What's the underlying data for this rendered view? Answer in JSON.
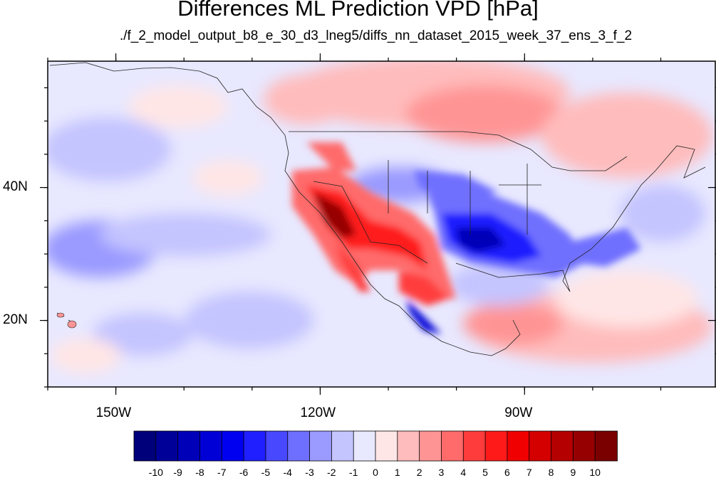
{
  "title": "Differences ML Prediction VPD [hPa]",
  "subtitle": "./f_2_model_output_b8_e_30_d3_lneg5/diffs_nn_dataset_2015_week_37_ens_3_f_2",
  "map": {
    "lon_range": [
      -160,
      -62
    ],
    "lat_range": [
      10,
      59
    ],
    "lon_ticks": [
      {
        "value": -150,
        "label": "150W"
      },
      {
        "value": -120,
        "label": "120W"
      },
      {
        "value": -90,
        "label": "90W"
      }
    ],
    "lat_ticks": [
      {
        "value": 40,
        "label": "40N"
      },
      {
        "value": 20,
        "label": "20N"
      }
    ]
  },
  "colorbar": {
    "levels": [
      "-10",
      "-9",
      "-8",
      "-7",
      "-6",
      "-5",
      "-4",
      "-3",
      "-2",
      "-1",
      "0",
      "1",
      "2",
      "3",
      "4",
      "5",
      "6",
      "7",
      "8",
      "9",
      "10"
    ],
    "colors": [
      "#00007a",
      "#000099",
      "#0000b8",
      "#0000d6",
      "#0000f0",
      "#1f1fff",
      "#4848ff",
      "#6f6fff",
      "#9a9aff",
      "#c4c4ff",
      "#e8e8ff",
      "#ffe6e6",
      "#ffbcbc",
      "#ff9494",
      "#ff6a6a",
      "#ff3c3c",
      "#ff1a1a",
      "#f00000",
      "#d40000",
      "#b40000",
      "#960000",
      "#7a0000"
    ]
  }
}
